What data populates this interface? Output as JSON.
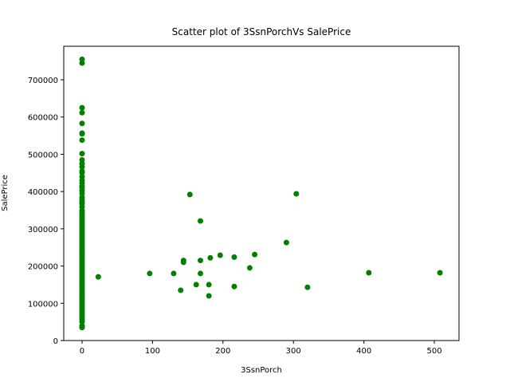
{
  "chart_data": {
    "type": "scatter",
    "title": "Scatter plot of 3SsnPorchVs SalePrice",
    "x_label": "3SsnPorch",
    "y_label": "SalePrice",
    "color": "#008000",
    "x": [
      0,
      0,
      0,
      0,
      0,
      0,
      0,
      0,
      0,
      0,
      0,
      0,
      0,
      0,
      0,
      0,
      0,
      0,
      0,
      0,
      0,
      0,
      0,
      0,
      0,
      0,
      0,
      0,
      0,
      0,
      0,
      0,
      0,
      0,
      0,
      0,
      0,
      0,
      0,
      0,
      0,
      0,
      0,
      0,
      0,
      0,
      0,
      0,
      0,
      0,
      0,
      0,
      0,
      0,
      0,
      0,
      0,
      0,
      0,
      0,
      0,
      0,
      0,
      0,
      0,
      0,
      0,
      0,
      0,
      0,
      0,
      0,
      0,
      0,
      0,
      0,
      0,
      0,
      0,
      0,
      0,
      0,
      0,
      0,
      0,
      0,
      0,
      0,
      0,
      0,
      23,
      96,
      130,
      140,
      144,
      144,
      153,
      162,
      168,
      168,
      168,
      180,
      180,
      182,
      196,
      216,
      216,
      238,
      245,
      290,
      304,
      320,
      407,
      508
    ],
    "y": [
      755000,
      745000,
      625000,
      611657,
      582933,
      556581,
      555000,
      538000,
      501837,
      485000,
      475000,
      466500,
      455000,
      450000,
      440000,
      430000,
      423000,
      415000,
      410000,
      402000,
      395000,
      385000,
      378500,
      372000,
      367000,
      359000,
      350000,
      345000,
      340000,
      335000,
      330000,
      325000,
      320000,
      315000,
      310000,
      305000,
      300000,
      295000,
      290000,
      285000,
      280000,
      275000,
      270000,
      265000,
      260000,
      255000,
      250000,
      245000,
      240000,
      235000,
      230000,
      225000,
      220000,
      215000,
      210000,
      205000,
      200000,
      195000,
      190000,
      185000,
      180000,
      175000,
      170000,
      165000,
      160000,
      155000,
      150000,
      145000,
      140000,
      135000,
      130000,
      125000,
      120000,
      115000,
      110000,
      105000,
      100000,
      95000,
      90000,
      85000,
      80000,
      75000,
      70000,
      65000,
      60000,
      55000,
      50000,
      40000,
      37900,
      34900,
      171000,
      180000,
      180000,
      135000,
      210000,
      215000,
      392000,
      150000,
      321000,
      215000,
      180000,
      150000,
      120000,
      222000,
      229000,
      224000,
      145000,
      195000,
      231000,
      263000,
      394000,
      143000,
      182000,
      182000
    ],
    "xlim": [
      -26,
      535
    ],
    "ylim": [
      0,
      790000
    ],
    "xticks": [
      0,
      100,
      200,
      300,
      400,
      500
    ],
    "yticks": [
      0,
      100000,
      200000,
      300000,
      400000,
      500000,
      600000,
      700000
    ]
  }
}
